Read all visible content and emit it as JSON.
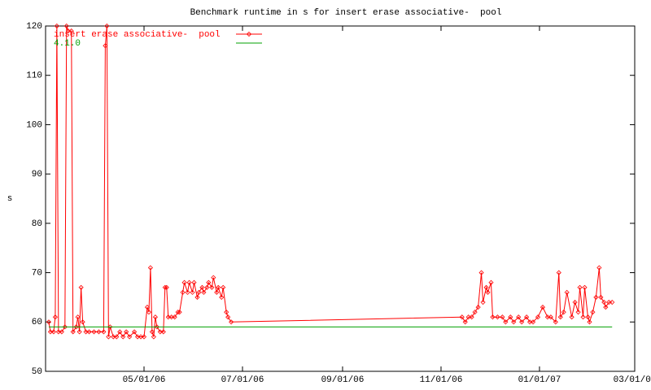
{
  "chart_data": {
    "type": "line",
    "title": "Benchmark runtime in s for insert erase associative-  pool",
    "y_label": "s",
    "ylim": [
      50,
      120
    ],
    "yticks": [
      50,
      60,
      70,
      80,
      90,
      100,
      110,
      120
    ],
    "xlim": [
      "2006-03-01",
      "2007-03-01"
    ],
    "xticks": [
      {
        "value": "2006-05-01",
        "label": "05/01/06"
      },
      {
        "value": "2006-07-01",
        "label": "07/01/06"
      },
      {
        "value": "2006-09-01",
        "label": "09/01/06"
      },
      {
        "value": "2006-11-01",
        "label": "11/01/06"
      },
      {
        "value": "2007-01-01",
        "label": "01/01/07"
      },
      {
        "value": "2007-03-01",
        "label": "03/01/07"
      }
    ],
    "grid": false,
    "legend": "top-left",
    "series": [
      {
        "name": "insert erase associative-  pool",
        "color": "#ff0000",
        "markers": true,
        "x": [
          "2006-03-03",
          "2006-03-04",
          "2006-03-06",
          "2006-03-07",
          "2006-03-08",
          "2006-03-09",
          "2006-03-11",
          "2006-03-13",
          "2006-03-14",
          "2006-03-15",
          "2006-03-17",
          "2006-03-18",
          "2006-03-20",
          "2006-03-21",
          "2006-03-22",
          "2006-03-23",
          "2006-03-24",
          "2006-03-26",
          "2006-03-28",
          "2006-03-31",
          "2006-04-03",
          "2006-04-06",
          "2006-04-07",
          "2006-04-08",
          "2006-04-09",
          "2006-04-10",
          "2006-04-12",
          "2006-04-14",
          "2006-04-16",
          "2006-04-18",
          "2006-04-20",
          "2006-04-22",
          "2006-04-25",
          "2006-04-27",
          "2006-04-29",
          "2006-05-01",
          "2006-05-03",
          "2006-05-04",
          "2006-05-05",
          "2006-05-06",
          "2006-05-07",
          "2006-05-08",
          "2006-05-09",
          "2006-05-11",
          "2006-05-13",
          "2006-05-14",
          "2006-05-15",
          "2006-05-16",
          "2006-05-18",
          "2006-05-20",
          "2006-05-22",
          "2006-05-23",
          "2006-05-25",
          "2006-05-26",
          "2006-05-28",
          "2006-05-29",
          "2006-05-31",
          "2006-06-01",
          "2006-06-03",
          "2006-06-04",
          "2006-06-06",
          "2006-06-07",
          "2006-06-09",
          "2006-06-10",
          "2006-06-12",
          "2006-06-13",
          "2006-06-15",
          "2006-06-16",
          "2006-06-18",
          "2006-06-19",
          "2006-06-21",
          "2006-06-22",
          "2006-06-24",
          "2006-11-14",
          "2006-11-16",
          "2006-11-18",
          "2006-11-20",
          "2006-11-22",
          "2006-11-24",
          "2006-11-26",
          "2006-11-27",
          "2006-11-29",
          "2006-11-30",
          "2006-12-02",
          "2006-12-03",
          "2006-12-06",
          "2006-12-09",
          "2006-12-11",
          "2006-12-14",
          "2006-12-16",
          "2006-12-19",
          "2006-12-21",
          "2006-12-24",
          "2006-12-26",
          "2006-12-28",
          "2006-12-31",
          "2007-01-03",
          "2007-01-06",
          "2007-01-08",
          "2007-01-11",
          "2007-01-13",
          "2007-01-14",
          "2007-01-16",
          "2007-01-18",
          "2007-01-21",
          "2007-01-23",
          "2007-01-25",
          "2007-01-26",
          "2007-01-28",
          "2007-01-29",
          "2007-01-31",
          "2007-02-01",
          "2007-02-03",
          "2007-02-05",
          "2007-02-07",
          "2007-02-08",
          "2007-02-10",
          "2007-02-11",
          "2007-02-13",
          "2007-02-15"
        ],
        "values": [
          60,
          58,
          58,
          61,
          120,
          58,
          58,
          59,
          120,
          119,
          119,
          58,
          59,
          61,
          58,
          67,
          60,
          58,
          58,
          58,
          58,
          58,
          116,
          120,
          57,
          59,
          57,
          57,
          58,
          57,
          58,
          57,
          58,
          57,
          57,
          57,
          63,
          62,
          71,
          58,
          57,
          61,
          59,
          58,
          58,
          67,
          67,
          61,
          61,
          61,
          62,
          62,
          66,
          68,
          66,
          68,
          66,
          68,
          65,
          66,
          67,
          66,
          67,
          68,
          67,
          69,
          66,
          67,
          65,
          67,
          62,
          61,
          60,
          61,
          60,
          61,
          61,
          62,
          63,
          70,
          64,
          67,
          66,
          68,
          61,
          61,
          61,
          60,
          61,
          60,
          61,
          60,
          61,
          60,
          60,
          61,
          63,
          61,
          61,
          60,
          70,
          61,
          62,
          66,
          61,
          64,
          62,
          67,
          61,
          67,
          61,
          60,
          62,
          65,
          71,
          65,
          64,
          63,
          64,
          64
        ]
      },
      {
        "name": "4.1.0",
        "color": "#00a000",
        "markers": false,
        "x": [
          "2006-03-03",
          "2007-02-15"
        ],
        "values": [
          59,
          59
        ]
      }
    ]
  }
}
